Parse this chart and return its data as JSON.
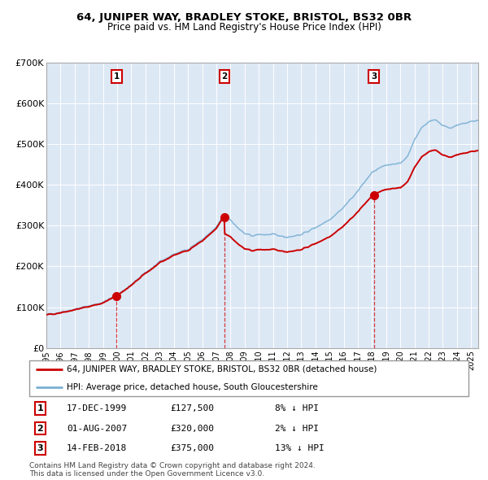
{
  "title": "64, JUNIPER WAY, BRADLEY STOKE, BRISTOL, BS32 0BR",
  "subtitle": "Price paid vs. HM Land Registry's House Price Index (HPI)",
  "background_color": "#dde8f5",
  "plot_bg_color": "#dde8f5",
  "red_line_color": "#cc0000",
  "blue_line_color": "#7ab0d4",
  "ylim": [
    0,
    700000
  ],
  "ytick_values": [
    0,
    100000,
    200000,
    300000,
    400000,
    500000,
    600000,
    700000
  ],
  "sales": [
    {
      "label": "1",
      "date": "17-DEC-1999",
      "price": 127500,
      "year": 1999.96,
      "hpi_rel": "8% ↓ HPI"
    },
    {
      "label": "2",
      "date": "01-AUG-2007",
      "price": 320000,
      "year": 2007.58,
      "hpi_rel": "2% ↓ HPI"
    },
    {
      "label": "3",
      "date": "14-FEB-2018",
      "price": 375000,
      "year": 2018.12,
      "hpi_rel": "13% ↓ HPI"
    }
  ],
  "legend_entries": [
    "64, JUNIPER WAY, BRADLEY STOKE, BRISTOL, BS32 0BR (detached house)",
    "HPI: Average price, detached house, South Gloucestershire"
  ],
  "footer1": "Contains HM Land Registry data © Crown copyright and database right 2024.",
  "footer2": "This data is licensed under the Open Government Licence v3.0.",
  "xmin": 1995.0,
  "xmax": 2025.5,
  "hpi_anchors_x": [
    1995.0,
    1996.0,
    1997.0,
    1998.0,
    1999.0,
    2000.0,
    2001.0,
    2002.0,
    2003.0,
    2004.0,
    2005.0,
    2006.0,
    2007.0,
    2007.5,
    2008.0,
    2008.5,
    2009.0,
    2009.5,
    2010.0,
    2011.0,
    2012.0,
    2013.0,
    2014.0,
    2015.0,
    2016.0,
    2017.0,
    2017.5,
    2018.0,
    2018.5,
    2019.0,
    2019.5,
    2020.0,
    2020.5,
    2021.0,
    2021.5,
    2022.0,
    2022.5,
    2023.0,
    2023.5,
    2024.0,
    2024.5,
    2025.0,
    2025.5
  ],
  "hpi_anchors_y": [
    82000,
    88000,
    95000,
    103000,
    112000,
    130000,
    155000,
    185000,
    210000,
    230000,
    242000,
    265000,
    295000,
    325000,
    315000,
    295000,
    280000,
    275000,
    278000,
    278000,
    272000,
    278000,
    295000,
    315000,
    345000,
    385000,
    408000,
    430000,
    440000,
    448000,
    452000,
    452000,
    470000,
    510000,
    540000,
    555000,
    560000,
    545000,
    540000,
    545000,
    550000,
    555000,
    558000
  ]
}
